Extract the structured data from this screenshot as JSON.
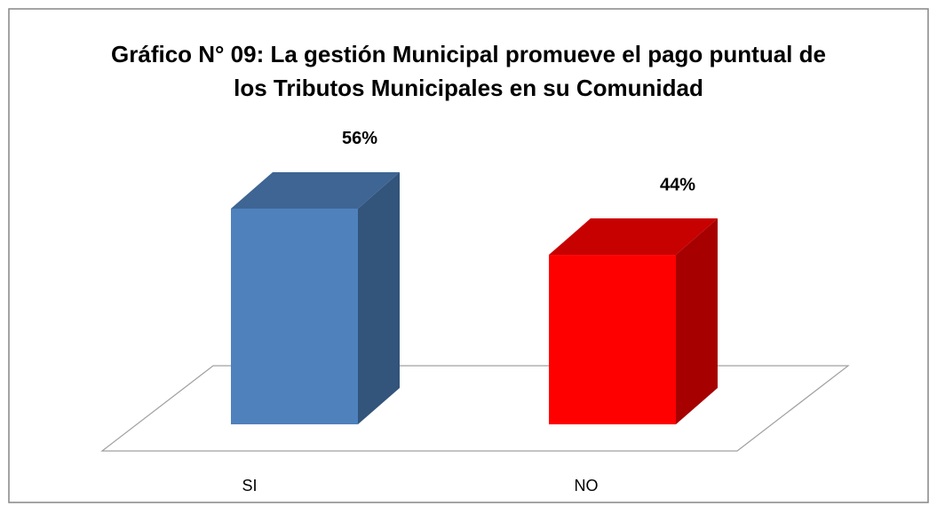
{
  "chart_data": {
    "type": "bar3d",
    "title": "Gráfico N° 09: La gestión Municipal promueve el pago puntual de los Tributos Municipales en su Comunidad",
    "categories": [
      "SI",
      "NO"
    ],
    "values": [
      56,
      44
    ],
    "value_labels": [
      "56%",
      "44%"
    ],
    "colors": [
      "#4f81bd",
      "#ff0000"
    ]
  }
}
